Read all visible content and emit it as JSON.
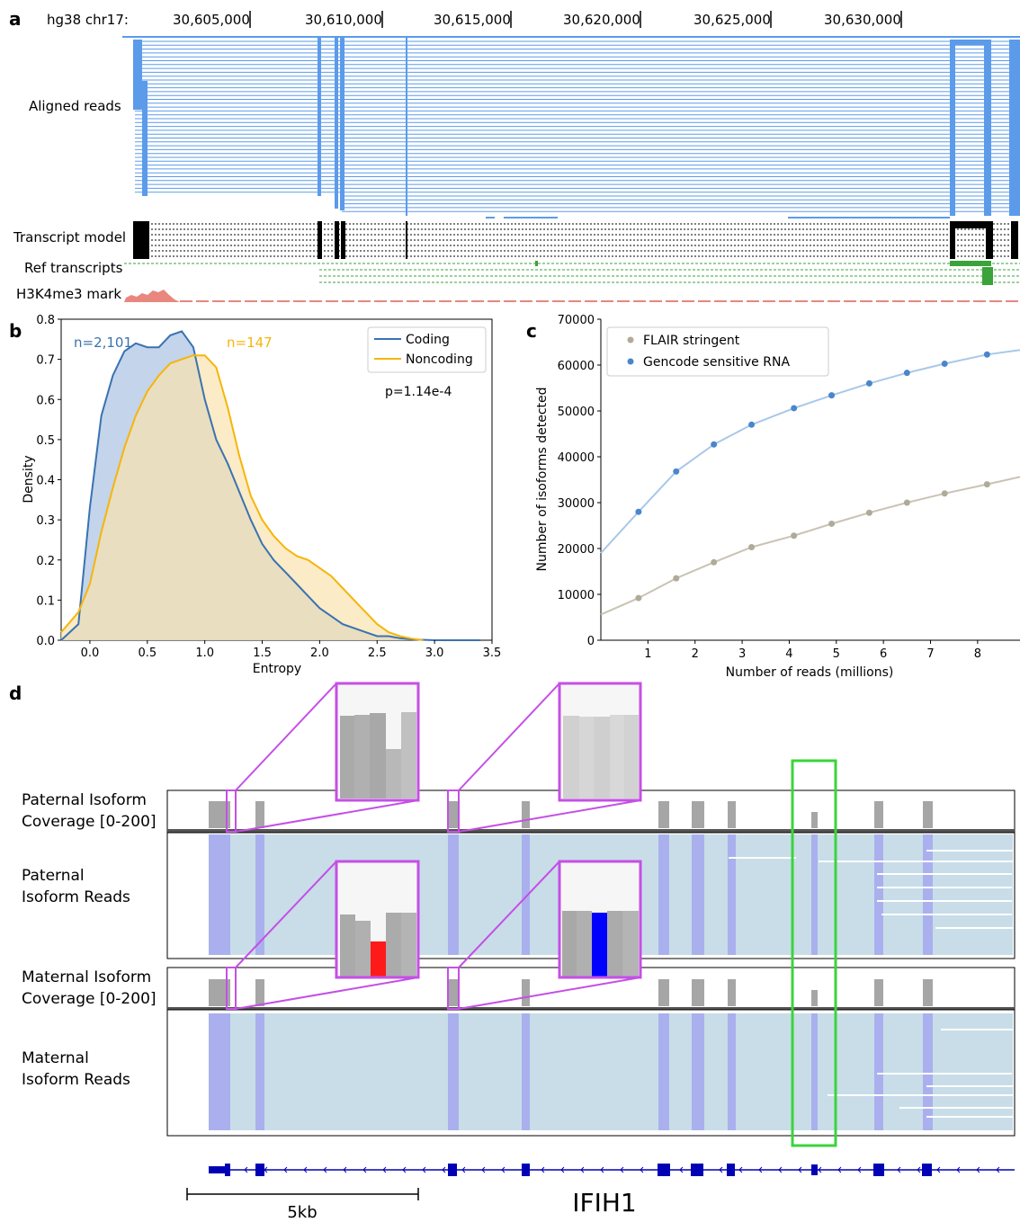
{
  "panel_a": {
    "letter": "a",
    "genome_label": "hg38 chr17:",
    "coords": [
      "30,605,000",
      "30,610,000",
      "30,615,000",
      "30,620,000",
      "30,625,000",
      "30,630,000"
    ],
    "track_labels": [
      "Aligned reads",
      "Transcript model",
      "Ref transcripts",
      "H3K4me3 mark"
    ],
    "colors": {
      "reads": "#5b9bea",
      "model": "#000000",
      "ref": "#3aa33a",
      "mark": "#e9867e"
    }
  },
  "panel_d": {
    "letter": "d",
    "track_labels": [
      [
        "Paternal Isoform",
        "Coverage [0-200]"
      ],
      [
        "Paternal",
        "Isoform Reads"
      ],
      [
        "Maternal Isoform",
        "Coverage [0-200]"
      ],
      [
        "Maternal",
        "Isoform Reads"
      ]
    ],
    "scale_label": "5kb",
    "gene_name": "IFIH1",
    "colors": {
      "coverage": "#a6a6a6",
      "reads": "#c8dde8",
      "exon_reads": "#aab0ee",
      "highlight": "#c54fe6",
      "green_box": "#3bd43b",
      "gene": "#0000b4",
      "ref_alt": "#ff1a1a",
      "ref_alt2": "#0000ff"
    }
  },
  "chart_data": [
    {
      "panel": "b",
      "type": "area",
      "xlabel": "Entropy",
      "ylabel": "Density",
      "xlim": [
        -0.25,
        3.5
      ],
      "ylim": [
        0,
        0.8
      ],
      "xticks": [
        "0.0",
        "0.5",
        "1.0",
        "1.5",
        "2.0",
        "2.5",
        "3.0",
        "3.5"
      ],
      "yticks": [
        "0.0",
        "0.1",
        "0.2",
        "0.3",
        "0.4",
        "0.5",
        "0.6",
        "0.7",
        "0.8"
      ],
      "annotations": [
        "n=2,101",
        "n=147",
        "p=1.14e-4"
      ],
      "legend_position": "top-right",
      "series": [
        {
          "name": "Coding",
          "color": "#3a72b0",
          "fill": "#b9cde8",
          "x": [
            -0.25,
            -0.1,
            0.0,
            0.1,
            0.2,
            0.3,
            0.4,
            0.5,
            0.6,
            0.7,
            0.8,
            0.9,
            1.0,
            1.1,
            1.2,
            1.3,
            1.4,
            1.5,
            1.6,
            1.7,
            1.8,
            1.9,
            2.0,
            2.1,
            2.2,
            2.3,
            2.4,
            2.5,
            2.6,
            2.7,
            2.8,
            3.0,
            3.2,
            3.4
          ],
          "values": [
            0.0,
            0.04,
            0.33,
            0.56,
            0.66,
            0.72,
            0.74,
            0.73,
            0.73,
            0.76,
            0.77,
            0.73,
            0.6,
            0.5,
            0.44,
            0.37,
            0.3,
            0.24,
            0.2,
            0.17,
            0.14,
            0.11,
            0.08,
            0.06,
            0.04,
            0.03,
            0.02,
            0.01,
            0.01,
            0.005,
            0.002,
            0.0,
            0.0,
            0.0
          ]
        },
        {
          "name": "Noncoding",
          "color": "#f5b50a",
          "fill": "#f9e2ae",
          "x": [
            -0.25,
            -0.1,
            0.0,
            0.1,
            0.2,
            0.3,
            0.4,
            0.5,
            0.6,
            0.7,
            0.8,
            0.9,
            1.0,
            1.1,
            1.2,
            1.3,
            1.4,
            1.5,
            1.6,
            1.7,
            1.8,
            1.9,
            2.0,
            2.1,
            2.2,
            2.3,
            2.4,
            2.5,
            2.6,
            2.7,
            2.8,
            2.9
          ],
          "values": [
            0.02,
            0.07,
            0.14,
            0.27,
            0.38,
            0.48,
            0.56,
            0.62,
            0.66,
            0.69,
            0.7,
            0.71,
            0.71,
            0.68,
            0.58,
            0.46,
            0.36,
            0.3,
            0.26,
            0.23,
            0.21,
            0.2,
            0.18,
            0.16,
            0.13,
            0.1,
            0.07,
            0.04,
            0.02,
            0.01,
            0.004,
            0.0
          ]
        }
      ]
    },
    {
      "panel": "c",
      "type": "scatter",
      "xlabel": "Number of reads (millions)",
      "ylabel": "Number of isoforms detected",
      "xlim": [
        0,
        8.9
      ],
      "ylim": [
        0,
        70000
      ],
      "xticks": [
        "1",
        "2",
        "3",
        "4",
        "5",
        "6",
        "7",
        "8"
      ],
      "yticks": [
        "0",
        "10000",
        "20000",
        "30000",
        "40000",
        "50000",
        "60000",
        "70000"
      ],
      "legend_position": "top-left",
      "series": [
        {
          "name": "FLAIR stringent",
          "color": "#b0aa98",
          "x": [
            0.8,
            1.6,
            2.4,
            3.2,
            4.1,
            4.9,
            5.7,
            6.5,
            7.3,
            8.2
          ],
          "values": [
            9200,
            13500,
            17000,
            20300,
            22800,
            25400,
            27800,
            30000,
            32000,
            34000
          ]
        },
        {
          "name": "Gencode sensitive RNA",
          "color": "#4a86cc",
          "x": [
            0.8,
            1.6,
            2.4,
            3.2,
            4.1,
            4.9,
            5.7,
            6.5,
            7.3,
            8.2
          ],
          "values": [
            28000,
            36800,
            42700,
            47000,
            50600,
            53400,
            56000,
            58300,
            60300,
            62300
          ]
        }
      ],
      "fits": [
        {
          "x": [
            0,
            0.8,
            1.6,
            2.4,
            3.2,
            4.1,
            4.9,
            5.7,
            6.5,
            7.3,
            8.2,
            8.9
          ],
          "values": [
            5600,
            9200,
            13500,
            17000,
            20300,
            22800,
            25400,
            27800,
            30000,
            32000,
            34000,
            35600
          ]
        },
        {
          "x": [
            0,
            0.8,
            1.6,
            2.4,
            3.2,
            4.1,
            4.9,
            5.7,
            6.5,
            7.3,
            8.2,
            8.9
          ],
          "values": [
            19000,
            28000,
            36800,
            42700,
            47000,
            50600,
            53400,
            56000,
            58300,
            60300,
            62300,
            63300
          ]
        }
      ]
    }
  ]
}
